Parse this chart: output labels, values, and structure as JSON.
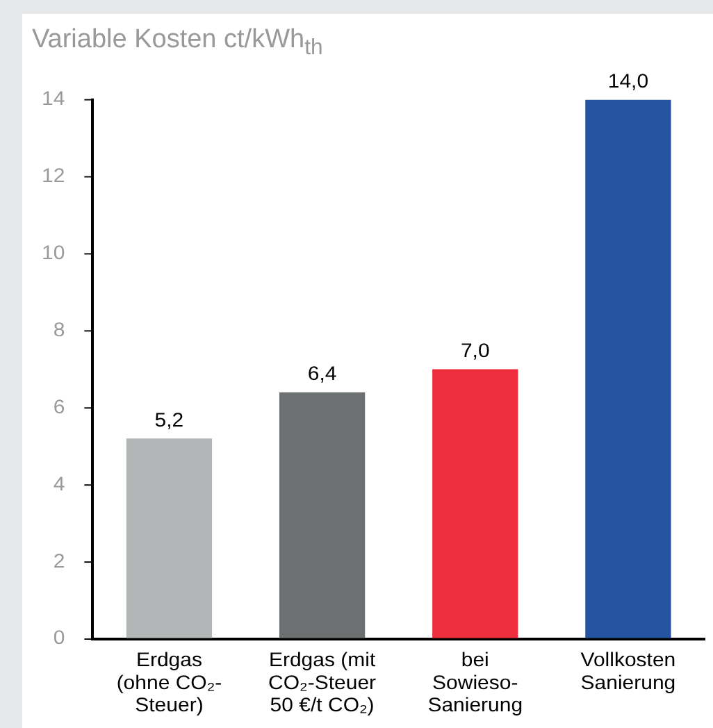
{
  "chart_data": {
    "type": "bar",
    "ylabel": "Variable Kosten ct/kWh$_{th}$",
    "categories": [
      "Erdgas (ohne CO₂-Steuer)",
      "Erdgas (mit CO₂-Steuer 50 €/t CO₂)",
      "bei Sowieso-Sanierung",
      "Vollkosten Sanierung"
    ],
    "values": [
      5.2,
      6.4,
      7.0,
      14.0
    ],
    "colors": [
      "#b3b6b6",
      "#6d7070",
      "#ee2e3c",
      "#2553a0"
    ],
    "value_labels": [
      "5,2",
      "6,4",
      "7,0",
      "14,0"
    ],
    "ylim": [
      0,
      14
    ],
    "yticks": [
      0,
      2,
      4,
      6,
      8,
      10,
      12,
      14
    ],
    "grid": false,
    "legend": false
  }
}
